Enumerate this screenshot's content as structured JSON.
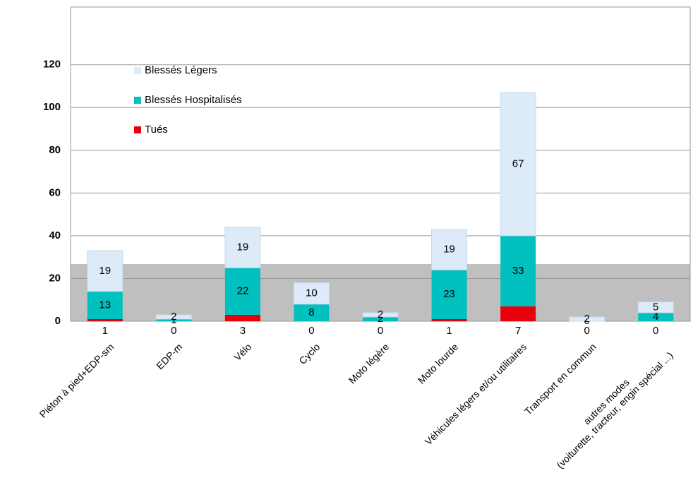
{
  "chart_data": {
    "type": "bar",
    "stacked": true,
    "categories": [
      "Piéton à pied+EDP-sm",
      "EDP-m",
      "Vélo",
      "Cyclo",
      "Moto légère",
      "Moto lourde",
      "Véhicules légers et/ou utilitaires",
      "Transport en commun",
      "autres modes\n(voiturette, tracteur, engin spécial ...)"
    ],
    "series": [
      {
        "name": "Tués",
        "color": "#e8000b",
        "values": [
          1,
          0,
          3,
          0,
          0,
          1,
          7,
          0,
          0
        ]
      },
      {
        "name": "Blessés Hospitalisés",
        "color": "#00c0c0",
        "values": [
          13,
          1,
          22,
          8,
          2,
          23,
          33,
          0,
          4
        ]
      },
      {
        "name": "Blessés Légers",
        "color": "#ddeaf7",
        "values": [
          19,
          2,
          19,
          10,
          2,
          19,
          67,
          2,
          5
        ]
      }
    ],
    "ylim": [
      0,
      147
    ],
    "yticks": [
      0,
      20,
      40,
      60,
      80,
      100,
      120
    ],
    "grid": true,
    "legend": "top-left"
  }
}
